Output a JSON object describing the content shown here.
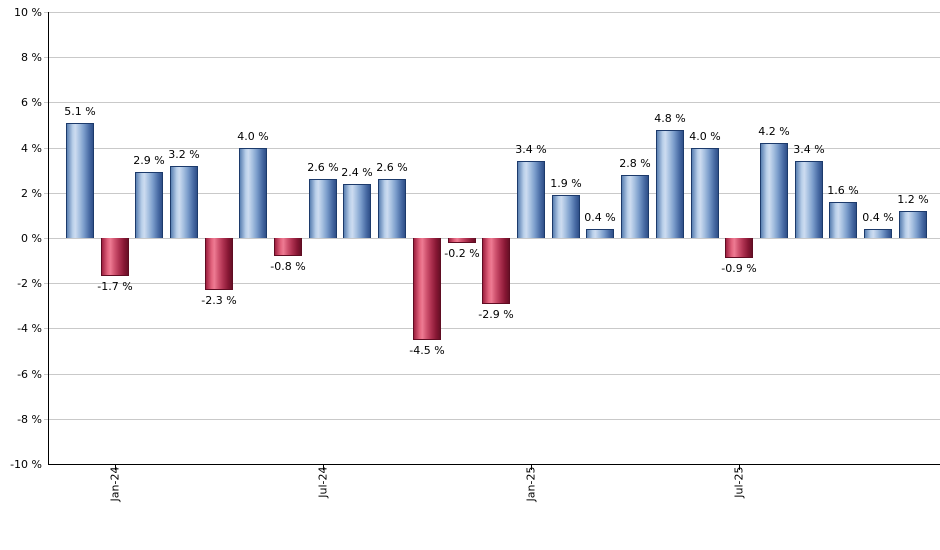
{
  "chart_data": {
    "type": "bar",
    "title": "",
    "xlabel": "",
    "ylabel": "",
    "ylim": [
      -10,
      10
    ],
    "y_tick_step": 2,
    "grid": "horizontal",
    "legend_position": "none",
    "values": [
      5.1,
      -1.7,
      2.9,
      3.2,
      -2.3,
      4.0,
      -0.8,
      2.6,
      2.4,
      2.6,
      -4.5,
      -0.2,
      -2.9,
      3.4,
      1.9,
      0.4,
      2.8,
      4.8,
      4.0,
      -0.9,
      4.2,
      3.4,
      1.6,
      0.4,
      1.2
    ],
    "bar_labels": [
      "5.1 %",
      "-1.7 %",
      "2.9 %",
      "3.2 %",
      "-2.3 %",
      "4.0 %",
      "-0.8 %",
      "2.6 %",
      "2.4 %",
      "2.6 %",
      "-4.5 %",
      "-0.2 %",
      "-2.9 %",
      "3.4 %",
      "1.9 %",
      "0.4 %",
      "2.8 %",
      "4.8 %",
      "4.0 %",
      "-0.9 %",
      "4.2 %",
      "3.4 %",
      "1.6 %",
      "0.4 %",
      "1.2 %"
    ],
    "y_tick_labels": [
      "10 %",
      "8 %",
      "6 %",
      "4 %",
      "2 %",
      "0 %",
      "-2 %",
      "-4 %",
      "-6 %",
      "-8 %",
      "-10 %"
    ],
    "x_tick_labels": [
      {
        "bar_index": 1,
        "label": "Jan-24"
      },
      {
        "bar_index": 7,
        "label": "Jul-24"
      },
      {
        "bar_index": 13,
        "label": "Jan-25"
      },
      {
        "bar_index": 19,
        "label": "Jul-25"
      }
    ],
    "positive_color": "#6f94c5",
    "negative_color": "#c84a66",
    "gridline_color": "#c9c9c9",
    "axis_color": "#000000",
    "label_color": "#000000"
  }
}
